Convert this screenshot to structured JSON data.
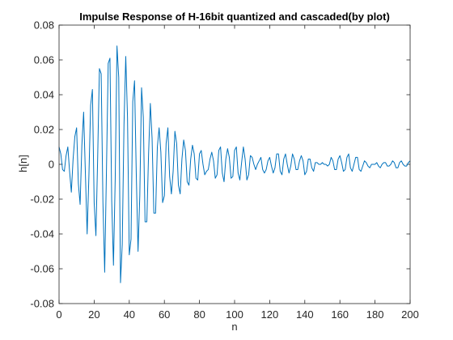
{
  "chart_data": {
    "type": "line",
    "title": "Impulse Response of H-16bit quantized and cascaded(by plot)",
    "xlabel": "n",
    "ylabel": "h[n]",
    "xlim": [
      0,
      200
    ],
    "ylim": [
      -0.08,
      0.08
    ],
    "xticks": [
      0,
      20,
      40,
      60,
      80,
      100,
      120,
      140,
      160,
      180,
      200
    ],
    "xtick_labels": [
      "0",
      "20",
      "40",
      "60",
      "80",
      "100",
      "120",
      "140",
      "160",
      "180",
      "200"
    ],
    "yticks": [
      -0.08,
      -0.06,
      -0.04,
      -0.02,
      0,
      0.02,
      0.04,
      0.06,
      0.08
    ],
    "ytick_labels": [
      "-0.08",
      "-0.06",
      "-0.04",
      "-0.02",
      "0",
      "0.02",
      "0.04",
      "0.06",
      "0.08"
    ],
    "grid": false,
    "line_color": "#0072bd",
    "series": [
      {
        "x": [
          0,
          1,
          2,
          3,
          4,
          5,
          6,
          7,
          8,
          9,
          10,
          11,
          12,
          13,
          14,
          15,
          16,
          17,
          18,
          19,
          20,
          21,
          22,
          23,
          24,
          25,
          26,
          27,
          28,
          29,
          30,
          31,
          32,
          33,
          34,
          35,
          36,
          37,
          38,
          39,
          40,
          41,
          42,
          43,
          44,
          45,
          46,
          47,
          48,
          49,
          50,
          51,
          52,
          53,
          54,
          55,
          56,
          57,
          58,
          59,
          60,
          61,
          62,
          63,
          64,
          65,
          66,
          67,
          68,
          69,
          70,
          71,
          72,
          73,
          74,
          75,
          76,
          77,
          78,
          79,
          80,
          81,
          82,
          83,
          84,
          85,
          86,
          87,
          88,
          89,
          90,
          91,
          92,
          93,
          94,
          95,
          96,
          97,
          98,
          99,
          100,
          101,
          102,
          103,
          104,
          105,
          106,
          107,
          108,
          109,
          110,
          111,
          112,
          113,
          114,
          115,
          116,
          117,
          118,
          119,
          120,
          121,
          122,
          123,
          124,
          125,
          126,
          127,
          128,
          129,
          130,
          131,
          132,
          133,
          134,
          135,
          136,
          137,
          138,
          139,
          140,
          141,
          142,
          143,
          144,
          145,
          146,
          147,
          148,
          149,
          150,
          151,
          152,
          153,
          154,
          155,
          156,
          157,
          158,
          159,
          160,
          161,
          162,
          163,
          164,
          165,
          166,
          167,
          168,
          169,
          170,
          171,
          172,
          173,
          174,
          175,
          176,
          177,
          178,
          179,
          180,
          181,
          182,
          183,
          184,
          185,
          186,
          187,
          188,
          189,
          190,
          191,
          192,
          193,
          194,
          195,
          196,
          197,
          198,
          199,
          200
        ],
        "y": [
          0.01,
          0.006,
          -0.003,
          -0.004,
          0.005,
          0.01,
          -0.004,
          -0.016,
          0.003,
          0.016,
          0.021,
          -0.011,
          -0.023,
          0.011,
          0.03,
          -0.005,
          -0.04,
          -0.007,
          0.034,
          0.043,
          -0.022,
          -0.041,
          0.004,
          0.055,
          0.052,
          -0.022,
          -0.062,
          -0.004,
          0.058,
          0.061,
          -0.021,
          -0.058,
          -0.008,
          0.068,
          0.05,
          -0.068,
          -0.046,
          0.023,
          0.062,
          0.027,
          -0.052,
          -0.043,
          0.036,
          0.048,
          -0.006,
          -0.05,
          -0.018,
          0.044,
          0.027,
          -0.033,
          -0.033,
          0.006,
          0.035,
          0.015,
          -0.028,
          -0.028,
          0.01,
          0.021,
          0.007,
          -0.022,
          -0.018,
          0.012,
          0.021,
          -0.007,
          -0.017,
          -0.004,
          0.019,
          0.012,
          -0.012,
          -0.017,
          0.003,
          0.014,
          0.008,
          -0.01,
          -0.012,
          0.003,
          0.011,
          0.006,
          -0.008,
          -0.009,
          0.006,
          0.008,
          0.0,
          -0.006,
          -0.004,
          -0.003,
          0.003,
          0.007,
          0.002,
          -0.008,
          -0.006,
          0.008,
          0.01,
          -0.005,
          -0.01,
          0.003,
          0.009,
          0.004,
          -0.008,
          -0.007,
          0.008,
          0.01,
          -0.005,
          -0.009,
          0.001,
          0.01,
          0.003,
          -0.009,
          -0.006,
          0.005,
          0.004,
          0.0,
          -0.003,
          0.0,
          0.002,
          0.004,
          -0.003,
          -0.005,
          -0.003,
          0.002,
          0.004,
          -0.001,
          -0.005,
          -0.002,
          0.006,
          0.006,
          -0.004,
          -0.006,
          0.003,
          0.006,
          0.0,
          -0.005,
          -0.001,
          0.006,
          0.003,
          -0.003,
          -0.003,
          0.002,
          0.005,
          0.002,
          -0.006,
          -0.004,
          0.003,
          0.003,
          -0.002,
          -0.004,
          0.001,
          0.001,
          0.0,
          0.0,
          0.001,
          0.0,
          0.0,
          -0.001,
          0.0,
          0.004,
          0.002,
          -0.003,
          -0.003,
          0.003,
          0.005,
          0.001,
          -0.004,
          -0.003,
          0.004,
          0.006,
          -0.002,
          -0.004,
          0.0,
          0.004,
          0.004,
          -0.003,
          -0.004,
          -0.001,
          0.002,
          0.001,
          -0.001,
          -0.002,
          0.0,
          0.0,
          0.0,
          0.001,
          -0.001,
          -0.002,
          0.0,
          0.001,
          0.001,
          -0.001,
          -0.001,
          0.0,
          0.002,
          0.001,
          -0.002,
          -0.002,
          0.001,
          0.002,
          0.0,
          -0.001,
          -0.001,
          0.001,
          0.002
        ]
      }
    ]
  }
}
